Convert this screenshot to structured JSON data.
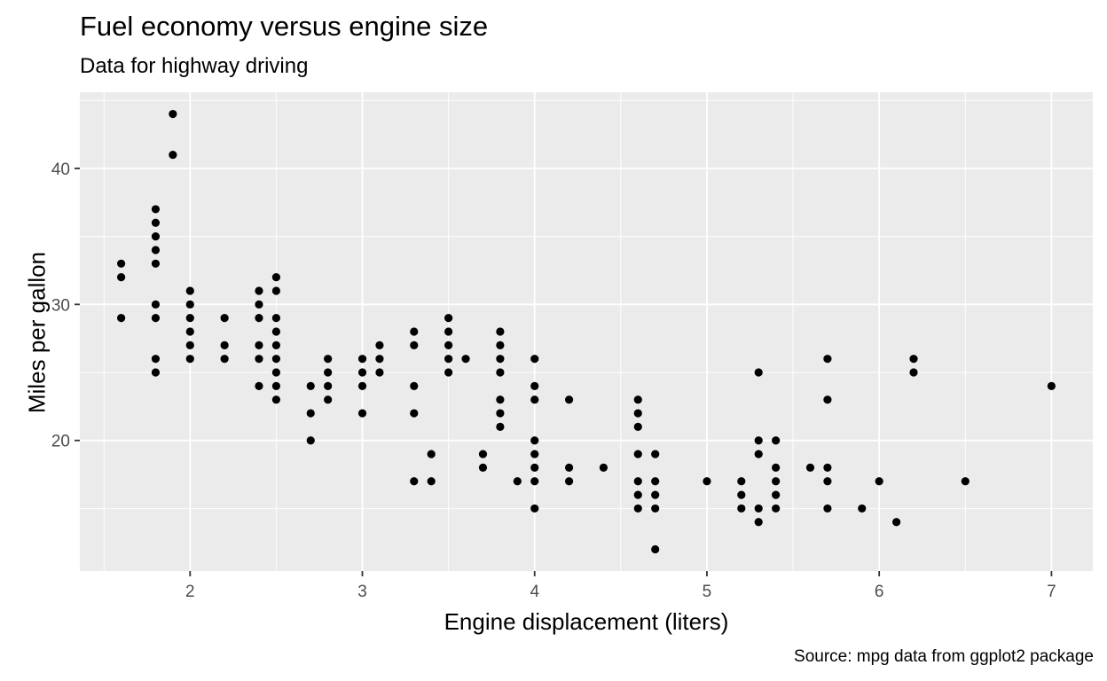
{
  "chart_data": {
    "type": "scatter",
    "title": "Fuel economy versus engine size",
    "subtitle": "Data for highway driving",
    "caption": "Source: mpg data from ggplot2 package",
    "xlabel": "Engine displacement (liters)",
    "ylabel": "Miles per gallon",
    "xlim": [
      1.36,
      7.24
    ],
    "ylim": [
      10.4,
      45.6
    ],
    "x_ticks": [
      2,
      3,
      4,
      5,
      6,
      7
    ],
    "y_ticks": [
      20,
      30,
      40
    ],
    "grid": true,
    "panel_background": "#ebebeb",
    "grid_color": "#ffffff",
    "point_color": "#000000",
    "points": [
      [
        1.6,
        29
      ],
      [
        1.6,
        32
      ],
      [
        1.6,
        33
      ],
      [
        1.8,
        25
      ],
      [
        1.8,
        26
      ],
      [
        1.8,
        29
      ],
      [
        1.8,
        30
      ],
      [
        1.8,
        33
      ],
      [
        1.8,
        34
      ],
      [
        1.8,
        35
      ],
      [
        1.8,
        36
      ],
      [
        1.8,
        37
      ],
      [
        1.9,
        41
      ],
      [
        1.9,
        44
      ],
      [
        2.0,
        26
      ],
      [
        2.0,
        27
      ],
      [
        2.0,
        28
      ],
      [
        2.0,
        29
      ],
      [
        2.0,
        30
      ],
      [
        2.0,
        31
      ],
      [
        2.2,
        26
      ],
      [
        2.2,
        27
      ],
      [
        2.2,
        29
      ],
      [
        2.4,
        24
      ],
      [
        2.4,
        26
      ],
      [
        2.4,
        27
      ],
      [
        2.4,
        29
      ],
      [
        2.4,
        30
      ],
      [
        2.4,
        31
      ],
      [
        2.5,
        23
      ],
      [
        2.5,
        24
      ],
      [
        2.5,
        25
      ],
      [
        2.5,
        26
      ],
      [
        2.5,
        27
      ],
      [
        2.5,
        28
      ],
      [
        2.5,
        29
      ],
      [
        2.5,
        31
      ],
      [
        2.5,
        32
      ],
      [
        2.7,
        20
      ],
      [
        2.7,
        22
      ],
      [
        2.7,
        24
      ],
      [
        2.8,
        23
      ],
      [
        2.8,
        24
      ],
      [
        2.8,
        25
      ],
      [
        2.8,
        26
      ],
      [
        3.0,
        22
      ],
      [
        3.0,
        24
      ],
      [
        3.0,
        25
      ],
      [
        3.0,
        26
      ],
      [
        3.1,
        25
      ],
      [
        3.1,
        26
      ],
      [
        3.1,
        27
      ],
      [
        3.3,
        17
      ],
      [
        3.3,
        22
      ],
      [
        3.3,
        24
      ],
      [
        3.3,
        27
      ],
      [
        3.3,
        28
      ],
      [
        3.4,
        17
      ],
      [
        3.4,
        19
      ],
      [
        3.5,
        25
      ],
      [
        3.5,
        26
      ],
      [
        3.5,
        27
      ],
      [
        3.5,
        28
      ],
      [
        3.5,
        29
      ],
      [
        3.6,
        26
      ],
      [
        3.7,
        18
      ],
      [
        3.7,
        19
      ],
      [
        3.8,
        21
      ],
      [
        3.8,
        22
      ],
      [
        3.8,
        23
      ],
      [
        3.8,
        25
      ],
      [
        3.8,
        26
      ],
      [
        3.8,
        27
      ],
      [
        3.8,
        28
      ],
      [
        3.9,
        17
      ],
      [
        4.0,
        15
      ],
      [
        4.0,
        17
      ],
      [
        4.0,
        18
      ],
      [
        4.0,
        19
      ],
      [
        4.0,
        20
      ],
      [
        4.0,
        23
      ],
      [
        4.0,
        24
      ],
      [
        4.0,
        26
      ],
      [
        4.2,
        17
      ],
      [
        4.2,
        18
      ],
      [
        4.2,
        23
      ],
      [
        4.4,
        18
      ],
      [
        4.6,
        15
      ],
      [
        4.6,
        16
      ],
      [
        4.6,
        17
      ],
      [
        4.6,
        19
      ],
      [
        4.6,
        21
      ],
      [
        4.6,
        22
      ],
      [
        4.6,
        23
      ],
      [
        4.7,
        12
      ],
      [
        4.7,
        15
      ],
      [
        4.7,
        16
      ],
      [
        4.7,
        17
      ],
      [
        4.7,
        19
      ],
      [
        5.0,
        17
      ],
      [
        5.2,
        15
      ],
      [
        5.2,
        16
      ],
      [
        5.2,
        17
      ],
      [
        5.3,
        14
      ],
      [
        5.3,
        15
      ],
      [
        5.3,
        19
      ],
      [
        5.3,
        20
      ],
      [
        5.3,
        25
      ],
      [
        5.4,
        15
      ],
      [
        5.4,
        16
      ],
      [
        5.4,
        17
      ],
      [
        5.4,
        18
      ],
      [
        5.4,
        20
      ],
      [
        5.6,
        18
      ],
      [
        5.7,
        15
      ],
      [
        5.7,
        17
      ],
      [
        5.7,
        18
      ],
      [
        5.7,
        23
      ],
      [
        5.7,
        26
      ],
      [
        5.9,
        15
      ],
      [
        6.0,
        17
      ],
      [
        6.1,
        14
      ],
      [
        6.2,
        25
      ],
      [
        6.2,
        26
      ],
      [
        6.5,
        17
      ],
      [
        7.0,
        24
      ]
    ]
  }
}
